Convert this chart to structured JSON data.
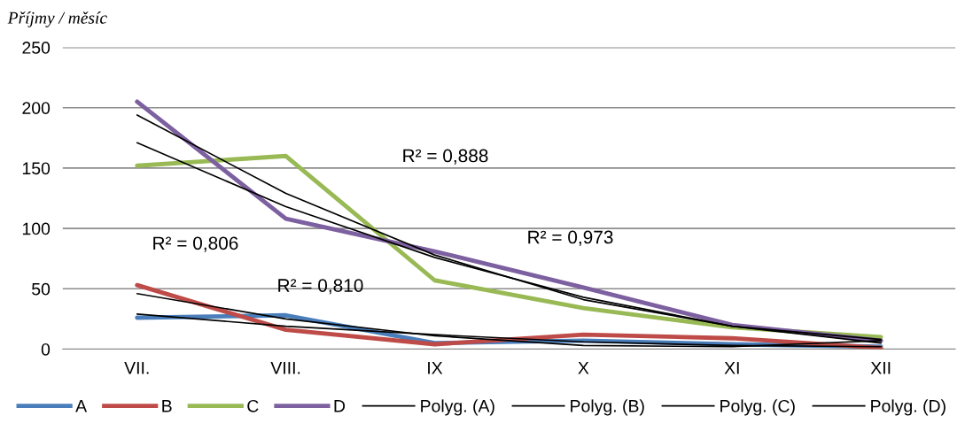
{
  "chart_data": {
    "type": "line",
    "title": "Příjmy / měsíc",
    "categories": [
      "VII.",
      "VIII.",
      "IX",
      "X",
      "XI",
      "XII"
    ],
    "series": [
      {
        "name": "A",
        "color": "#4a7ebb",
        "values": [
          26,
          28,
          5,
          7,
          4,
          2
        ]
      },
      {
        "name": "B",
        "color": "#be4b48",
        "values": [
          53,
          16,
          4,
          12,
          9,
          1
        ]
      },
      {
        "name": "C",
        "color": "#98b954",
        "values": [
          152,
          160,
          57,
          34,
          18,
          10
        ]
      },
      {
        "name": "D",
        "color": "#7d60a0",
        "values": [
          205,
          108,
          81,
          51,
          20,
          7
        ]
      },
      {
        "name": "Polyg. (A)",
        "color": "#000000",
        "values": [
          29,
          19,
          12,
          6,
          3,
          2
        ]
      },
      {
        "name": "Polyg. (B)",
        "color": "#000000",
        "values": [
          46,
          25,
          11,
          3,
          2,
          7
        ]
      },
      {
        "name": "Polyg. (C)",
        "color": "#000000",
        "values": [
          171,
          118,
          76,
          43,
          19,
          5
        ]
      },
      {
        "name": "Polyg. (D)",
        "color": "#000000",
        "values": [
          194,
          129,
          78,
          41,
          19,
          8
        ]
      }
    ],
    "annotations": [
      "R² = 0,806",
      "R² = 0,810",
      "R² = 0,888",
      "R² = 0,973"
    ],
    "ylim": [
      0,
      250
    ],
    "yticks": [
      0,
      50,
      100,
      150,
      200,
      250
    ],
    "grid": "y",
    "legend": "bottom",
    "marker": "none",
    "line_style": "solid"
  }
}
